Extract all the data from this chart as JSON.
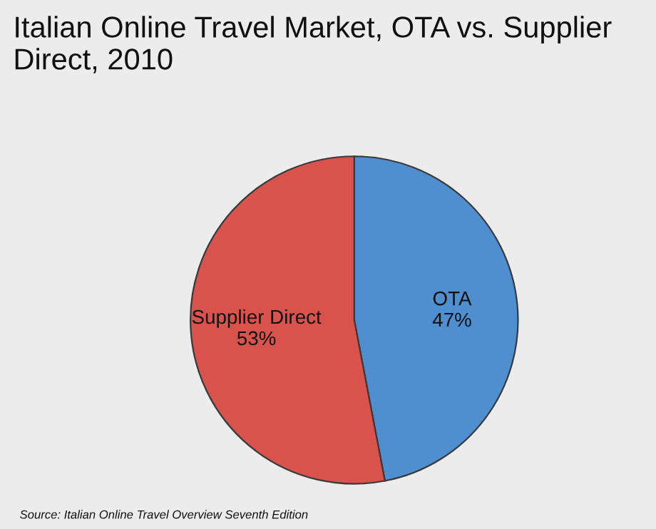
{
  "chart_data": {
    "type": "pie",
    "title": "Italian Online Travel Market, OTA vs. Supplier Direct, 2010",
    "categories": [
      "OTA",
      "Supplier Direct"
    ],
    "values": [
      47,
      53
    ],
    "colors": [
      "#4f8fd0",
      "#d9534c"
    ],
    "value_labels": [
      "47%",
      "53%"
    ],
    "annotations": [
      "Source: Italian Online Travel Overview Seventh Edition"
    ]
  }
}
